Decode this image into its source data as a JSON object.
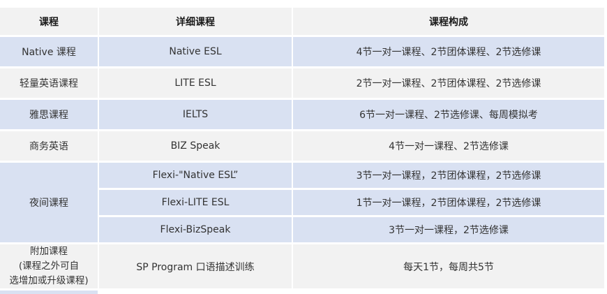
{
  "table": {
    "headers": [
      "课程",
      "详细课程",
      "课程构成"
    ],
    "colors": {
      "row_blue": "#d9e1f2",
      "row_gray": "#f2f2f2",
      "header_bg": "#f2f2f2",
      "text": "#333333"
    },
    "rows": [
      {
        "course": "Native 课程",
        "detail": "Native ESL",
        "composition": "4节一对一课程、2节团体课程、2节选修课"
      },
      {
        "course": "轻量英语课程",
        "detail": "LITE ESL",
        "composition": "2节一对一课程、2节团体课程、2节选修课"
      },
      {
        "course": "雅思课程",
        "detail": "IELTS",
        "composition": "6节一对一课程、2节选修课、每周模拟考"
      },
      {
        "course": "商务英语",
        "detail": "BIZ Speak",
        "composition": "4节一对一课程、2节选修课"
      },
      {
        "course": "夜间课程",
        "subrows": [
          {
            "detail": "Flexi-\"Native ESL”",
            "composition": "3节一对一课程，2节团体课程，2节选修课"
          },
          {
            "detail": "Flexi-LITE ESL",
            "composition": "1节一对一课程，2节团体课程，2节选修课"
          },
          {
            "detail": "Flexi-BizSpeak",
            "composition": "3节一对一课程，2节选修课"
          }
        ]
      },
      {
        "course": "附加课程\n(课程之外可自\n选增加或升级课程)",
        "detail": "SP Program 口语描述训练",
        "composition": "每天1节，每周共5节"
      }
    ]
  }
}
